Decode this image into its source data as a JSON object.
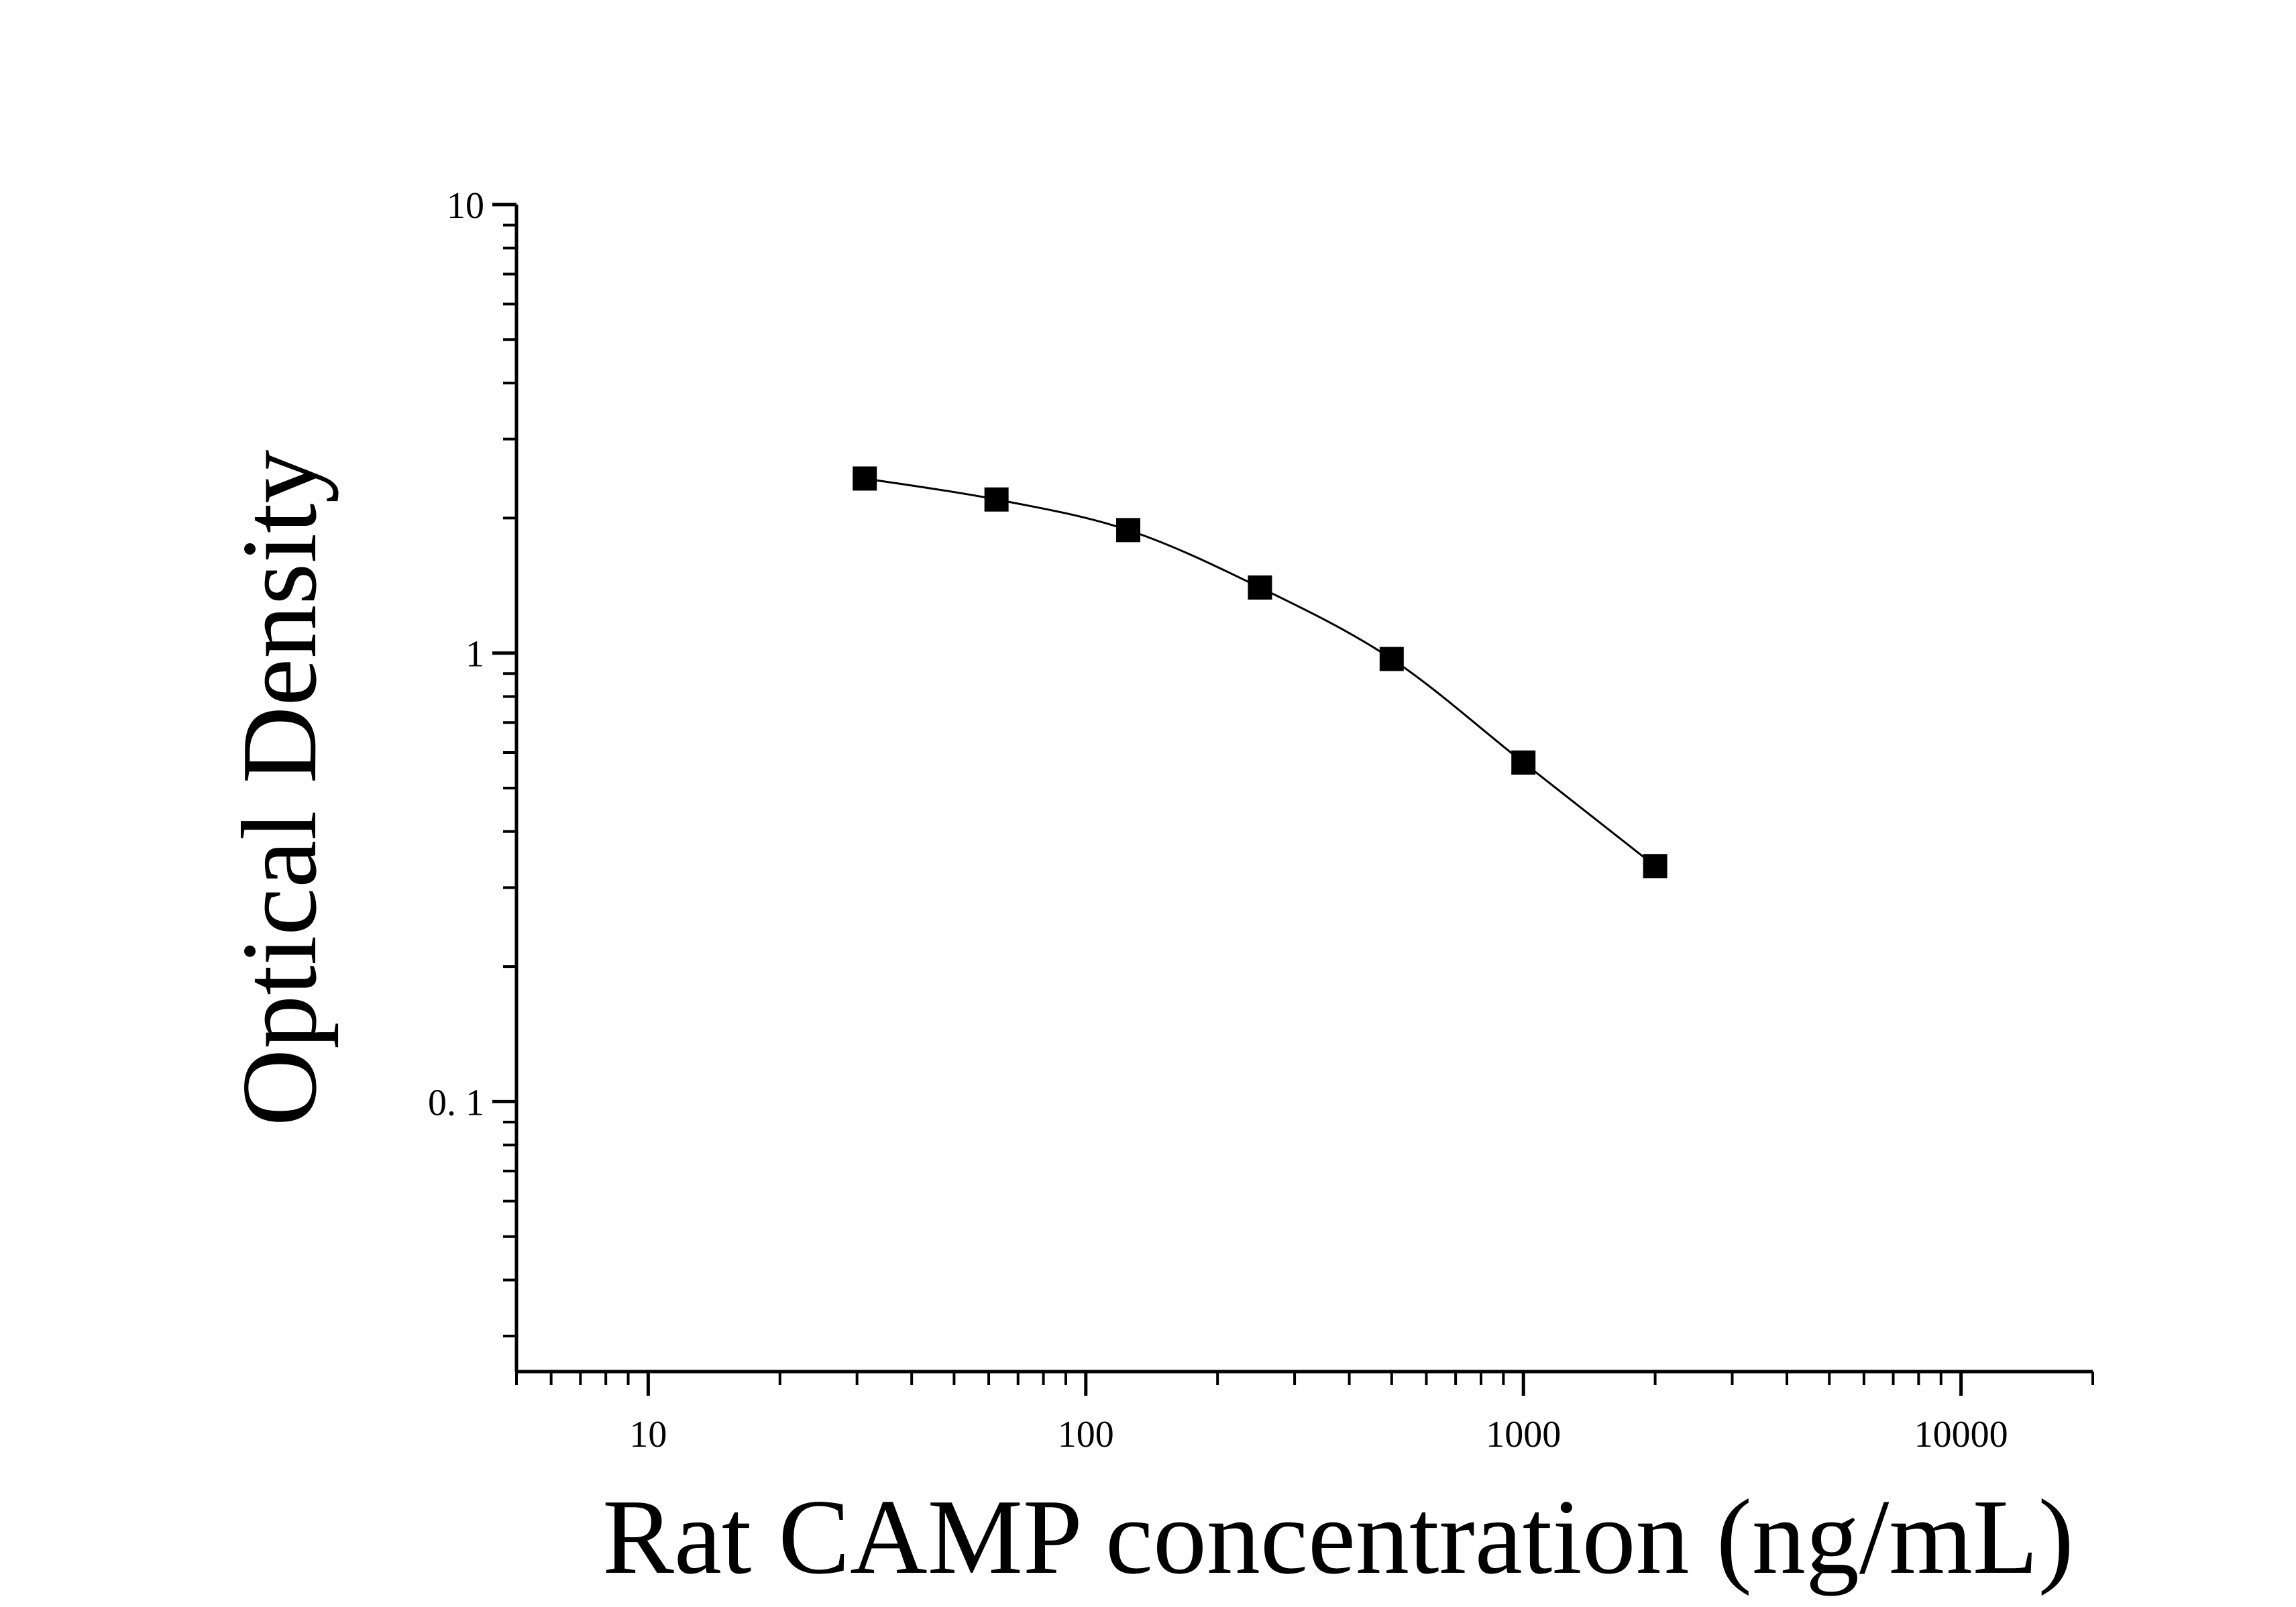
{
  "chart_data": {
    "type": "scatter",
    "title": "",
    "xlabel": "Rat CAMP concentration (ng/mL)",
    "ylabel": "Optical Density",
    "x_scale": "log",
    "y_scale": "log",
    "xlim": [
      5,
      20000
    ],
    "ylim": [
      0.025,
      10
    ],
    "x_ticks": [
      10,
      100,
      1000,
      10000
    ],
    "x_tick_labels": [
      "10",
      "100",
      "1000",
      "10000"
    ],
    "y_ticks": [
      0.1,
      1,
      10
    ],
    "y_tick_labels": [
      "0. 1",
      "1",
      "10"
    ],
    "grid": false,
    "legend": "none",
    "series": [
      {
        "marker": "square",
        "fit_curve": true,
        "color": "#000000",
        "x": [
          31.25,
          62.5,
          125,
          250,
          500,
          1000,
          2000
        ],
        "y": [
          2.45,
          2.2,
          1.88,
          1.4,
          0.97,
          0.57,
          0.335
        ]
      }
    ]
  }
}
